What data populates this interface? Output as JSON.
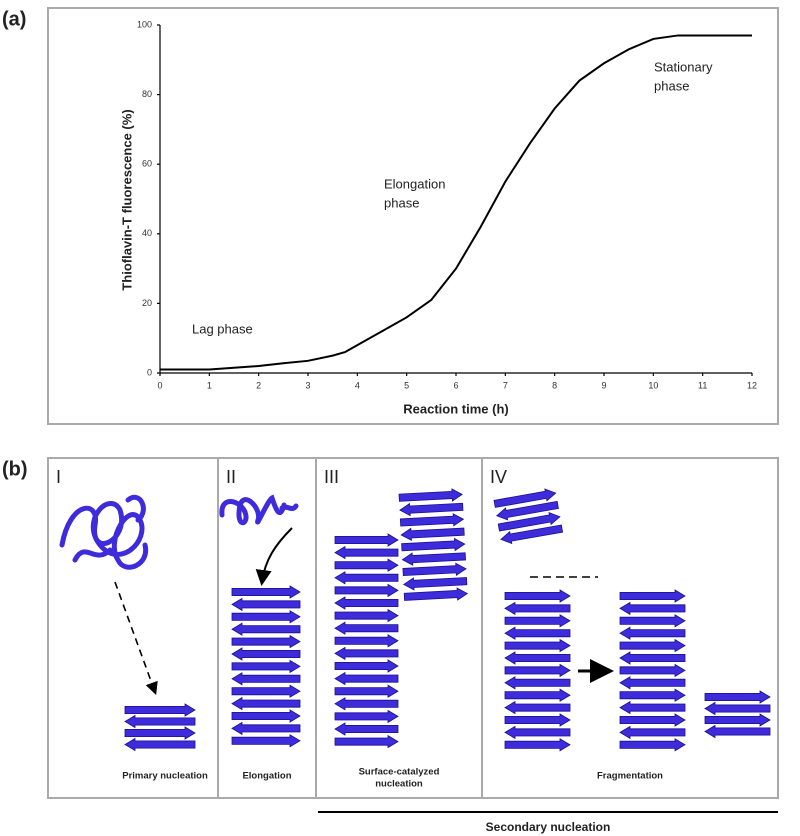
{
  "panel_labels": [
    "(a)",
    "(b)"
  ],
  "chart_data": {
    "type": "line",
    "x_label": "Reaction time (h)",
    "y_label": "Thioflavin-T fluorescence (%)",
    "annotations": [
      [
        "Lag phase"
      ],
      [
        "Elongation",
        "phase"
      ],
      [
        "Stationary",
        "phase"
      ]
    ],
    "x": [
      0,
      0.5,
      1,
      1.5,
      2,
      2.5,
      3,
      3.5,
      3.75,
      4,
      4.5,
      5,
      5.5,
      6,
      6.5,
      7,
      7.5,
      8,
      8.5,
      9,
      9.5,
      10,
      10.5,
      11,
      11.5,
      12
    ],
    "values": [
      1,
      1,
      1,
      1.5,
      2,
      2.8,
      3.5,
      5,
      6,
      8,
      12,
      16,
      21,
      30,
      42,
      55,
      66,
      76,
      84,
      89,
      93,
      96,
      97,
      97,
      97,
      97
    ],
    "color": "#000000",
    "xlim": [
      0,
      12
    ],
    "xticks": [
      0,
      1,
      2,
      3,
      4,
      5,
      6,
      7,
      8,
      9,
      10,
      11,
      12
    ],
    "ylim": [
      0,
      100
    ],
    "yticks": [
      0,
      20,
      40,
      60,
      80,
      100
    ],
    "grid": false
  },
  "panel_b": {
    "stages": [
      {
        "numeral": "I",
        "caption": [
          "Primary nucleation"
        ]
      },
      {
        "numeral": "II",
        "caption": [
          "Elongation"
        ]
      },
      {
        "numeral": "III",
        "caption": [
          "Surface-catalyzed",
          "nucleation"
        ]
      },
      {
        "numeral": "IV",
        "caption": [
          "Fragmentation"
        ]
      }
    ],
    "group_label": "Secondary nucleation"
  }
}
